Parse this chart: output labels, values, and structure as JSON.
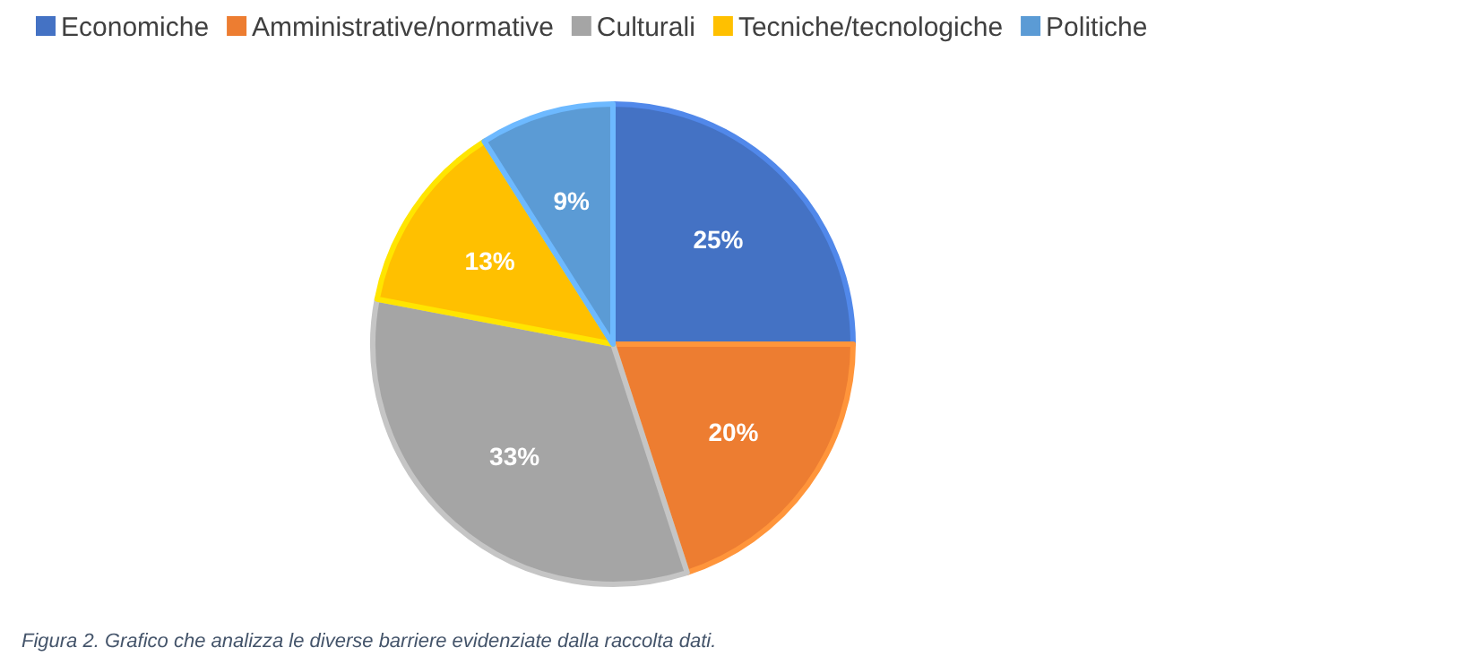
{
  "chart_data": {
    "type": "pie",
    "categories": [
      "Economiche",
      "Amministrative/normative",
      "Culturali",
      "Tecniche/tecnologiche",
      "Politiche"
    ],
    "values": [
      25,
      20,
      33,
      13,
      9
    ],
    "colors": [
      "#4472c4",
      "#ed7d31",
      "#a5a5a5",
      "#ffc000",
      "#5b9bd5"
    ],
    "value_labels": [
      "25%",
      "20%",
      "33%",
      "13%",
      "9%"
    ],
    "legend": "top",
    "annotations": [
      "Figura 2. Grafico che analizza le diverse barriere evidenziate dalla raccolta dati."
    ]
  }
}
